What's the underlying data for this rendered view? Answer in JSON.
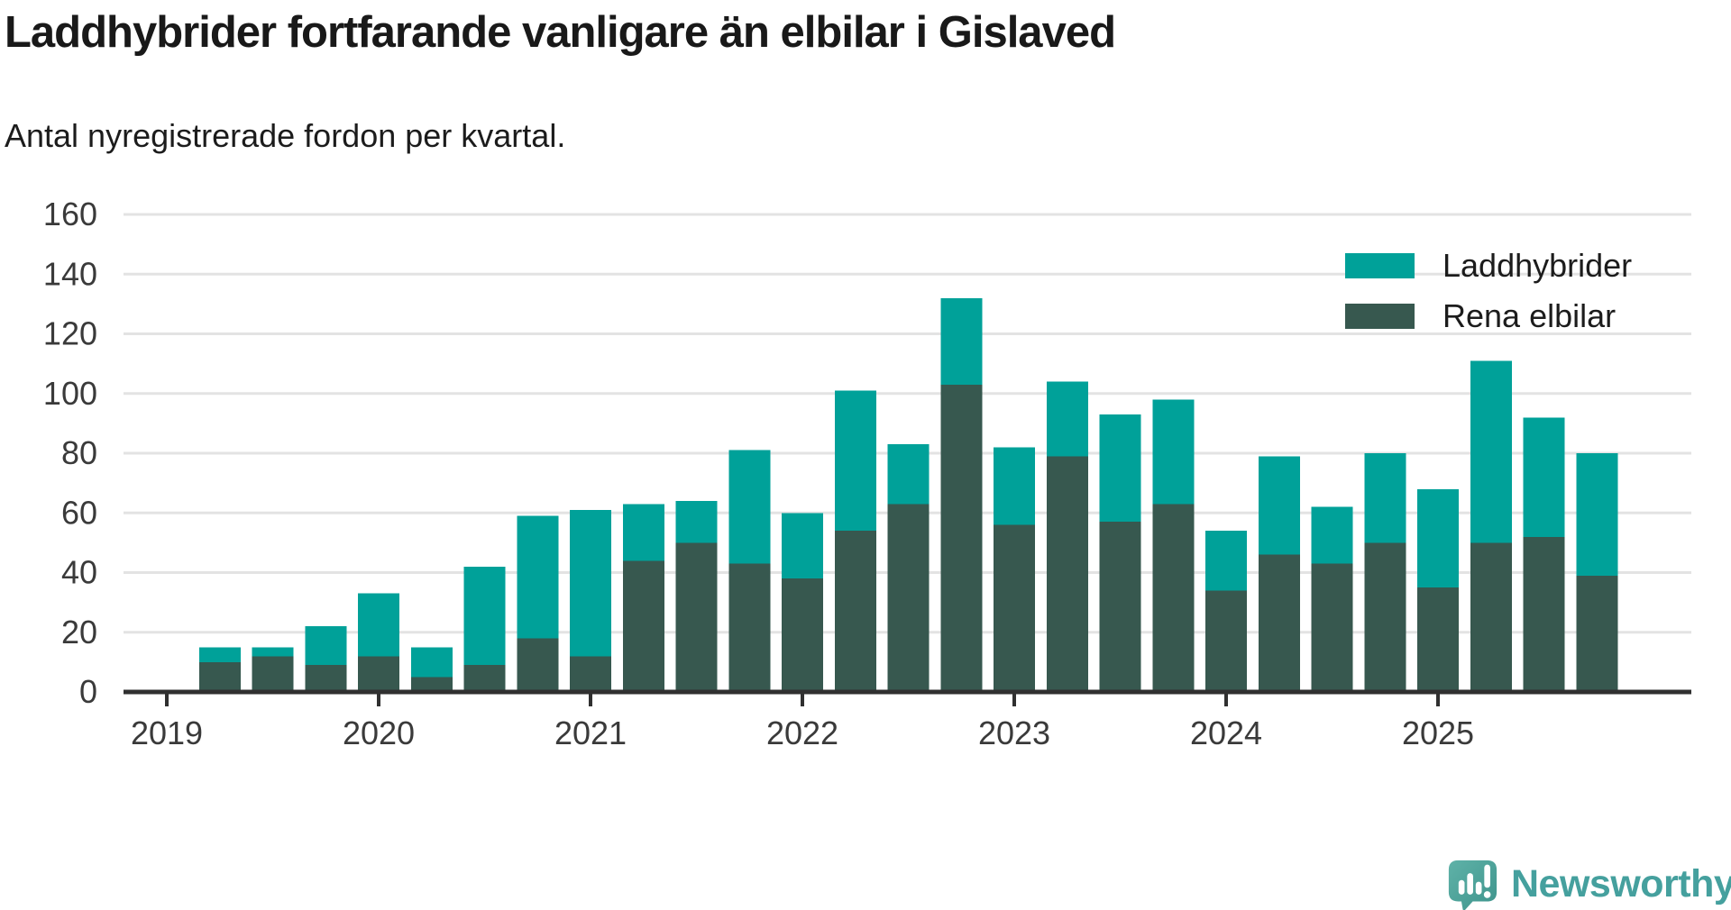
{
  "header": {
    "title": "Laddhybrider fortfarande vanligare än elbilar i Gislaved",
    "subtitle": "Antal nyregistrerade fordon per kvartal."
  },
  "colors": {
    "laddhybrider": "#00a199",
    "rena_elbilar": "#37584f",
    "axis": "#303030",
    "grid": "#e3e3e3",
    "tick_text": "#3a3a3a",
    "title_text": "#191919",
    "logo_teal": "#45a09e",
    "logo_bubble_light": "#5fb2a8",
    "logo_bubble_dark": "#3e948c"
  },
  "legend": {
    "items": [
      {
        "label": "Laddhybrider",
        "color": "#00a199"
      },
      {
        "label": "Rena elbilar",
        "color": "#37584f"
      }
    ]
  },
  "chart_data": {
    "type": "bar",
    "stacked": true,
    "title": "Laddhybrider fortfarande vanligare än elbilar i Gislaved",
    "subtitle": "Antal nyregistrerade fordon per kvartal.",
    "xlabel": "",
    "ylabel": "",
    "ylim": [
      0,
      160
    ],
    "yticks": [
      0,
      20,
      40,
      60,
      80,
      100,
      120,
      140,
      160
    ],
    "grid": true,
    "legend_position": "top-right",
    "x_tick_labels": [
      "2019",
      "2020",
      "2021",
      "2022",
      "2023",
      "2024",
      "2025"
    ],
    "categories": [
      "2019 Q2",
      "2019 Q3",
      "2019 Q4",
      "2020 Q1",
      "2020 Q2",
      "2020 Q3",
      "2020 Q4",
      "2021 Q1",
      "2021 Q2",
      "2021 Q3",
      "2021 Q4",
      "2022 Q1",
      "2022 Q2",
      "2022 Q3",
      "2022 Q4",
      "2023 Q1",
      "2023 Q2",
      "2023 Q3",
      "2023 Q4",
      "2024 Q1",
      "2024 Q2",
      "2024 Q3",
      "2024 Q4",
      "2025 Q1",
      "2025 Q2",
      "2025 Q3",
      "2025 Q4"
    ],
    "series": [
      {
        "name": "Rena elbilar",
        "color": "#37584f",
        "values": [
          10,
          12,
          9,
          12,
          5,
          9,
          18,
          12,
          44,
          50,
          43,
          38,
          54,
          63,
          103,
          56,
          79,
          57,
          63,
          34,
          46,
          43,
          50,
          35,
          50,
          52,
          39
        ]
      },
      {
        "name": "Laddhybrider",
        "color": "#00a199",
        "values": [
          5,
          3,
          13,
          21,
          10,
          33,
          41,
          49,
          19,
          14,
          38,
          22,
          47,
          20,
          29,
          26,
          25,
          36,
          35,
          20,
          33,
          19,
          30,
          33,
          61,
          40,
          41
        ]
      }
    ],
    "totals": [
      15,
      15,
      22,
      33,
      15,
      42,
      59,
      61,
      63,
      64,
      81,
      60,
      101,
      83,
      132,
      82,
      104,
      93,
      98,
      54,
      79,
      62,
      80,
      68,
      111,
      92,
      80
    ]
  },
  "footer": {
    "brand": "Newsworthy"
  }
}
